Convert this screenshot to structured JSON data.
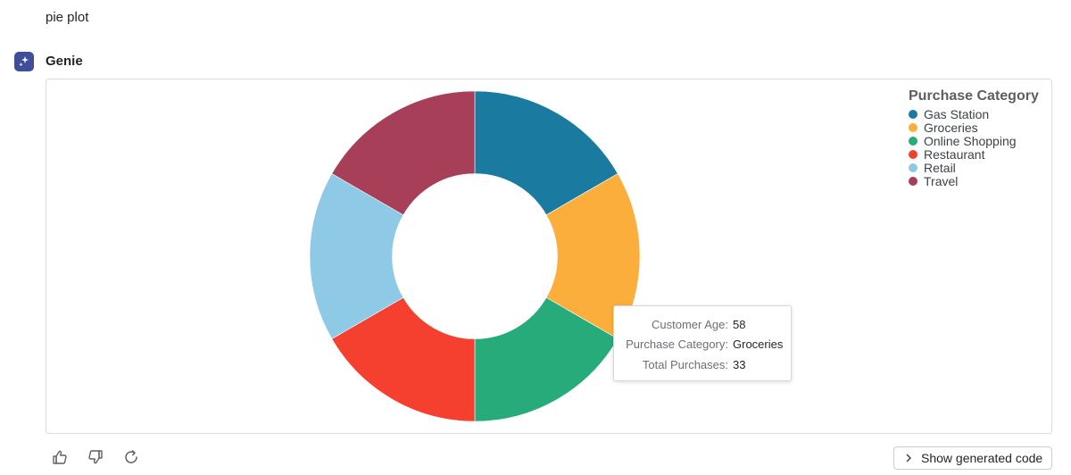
{
  "conversation": {
    "user_message": "pie plot",
    "assistant_name": "Genie"
  },
  "chart_data": {
    "type": "pie",
    "hole": 0.5,
    "legend_title": "Purchase Category",
    "legend_position": "top-right",
    "slices": [
      {
        "label": "Gas Station",
        "value": 1,
        "color": "#1a7aa0"
      },
      {
        "label": "Groceries",
        "value": 1,
        "color": "#fbae3c"
      },
      {
        "label": "Online Shopping",
        "value": 1,
        "color": "#27ab7a"
      },
      {
        "label": "Restaurant",
        "value": 1,
        "color": "#f5402f"
      },
      {
        "label": "Retail",
        "value": 1,
        "color": "#8ecae6"
      },
      {
        "label": "Travel",
        "value": 1,
        "color": "#a63f57"
      }
    ]
  },
  "tooltip": {
    "rows": [
      {
        "label": "Customer Age:",
        "value": "58"
      },
      {
        "label": "Purchase Category:",
        "value": "Groceries"
      },
      {
        "label": "Total Purchases:",
        "value": "33"
      }
    ]
  },
  "actions": {
    "thumbs_up_icon": "thumbs-up-icon",
    "thumbs_down_icon": "thumbs-down-icon",
    "regenerate_icon": "refresh-icon",
    "show_code_label": "Show generated code"
  }
}
